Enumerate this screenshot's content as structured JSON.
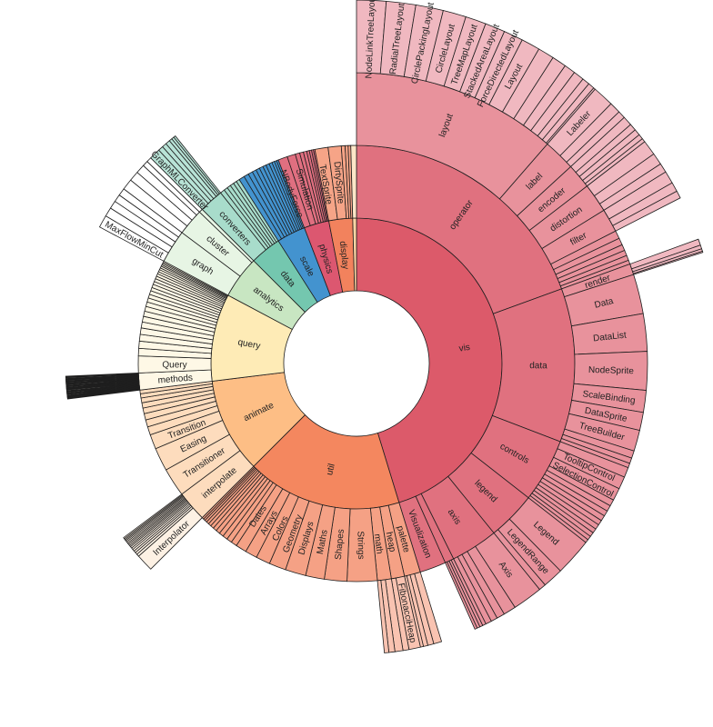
{
  "chart_data": {
    "type": "sunburst",
    "title": "",
    "colors": {
      "vis": [
        "#dc5a6a",
        "#e0717f",
        "#e8929c",
        "#f0b8c0"
      ],
      "util": [
        "#f4875f",
        "#f5a185",
        "#f9c3b1",
        "#fbd8cb"
      ],
      "animate": [
        "#fdbe85",
        "#fddcbd",
        "#fdf1e4",
        "#fff8f0"
      ],
      "query": [
        "#feebb6",
        "#fef8e6",
        "#fffdf5",
        "#ffffff"
      ],
      "analytics": [
        "#c8e6c2",
        "#e7f5e4",
        "#ffffff",
        "#ffffff"
      ],
      "data": [
        "#74c7af",
        "#a8dccb",
        "#b8e3d6",
        "#d5efe6"
      ],
      "scale": [
        "#4393cf",
        "#4393cf",
        "#6aabdb",
        "#9cc8e8"
      ],
      "physics": [
        "#dc5770",
        "#e06f80",
        "#e8939d",
        "#f0b8c0"
      ],
      "display": [
        "#f2825d",
        "#f6a487",
        "#f9c3b1",
        "#fbd8cb"
      ],
      "flex": [
        "#fdd5a5",
        "#fde6c8",
        "#fff1e0",
        "#fff8f0"
      ]
    },
    "tree": {
      "children": [
        {
          "name": "vis",
          "children": [
            {
              "name": "operator",
              "children": [
                {
                  "name": "layout",
                  "children": [
                    {
                      "name": "NodeLinkTreeLayout",
                      "value": 4.7
                    },
                    {
                      "name": "RadialTreeLayout",
                      "value": 4.7
                    },
                    {
                      "name": "CirclePackingLayout",
                      "value": 4.4
                    },
                    {
                      "name": "CircleLayout",
                      "value": 3.7
                    },
                    {
                      "name": "TreeMapLayout",
                      "value": 3.3
                    },
                    {
                      "name": "StackedAreaLayout",
                      "value": 3.2
                    },
                    {
                      "name": "ForceDirectedLayout",
                      "value": 3.1
                    },
                    {
                      "name": "Layout",
                      "value": 3.0
                    },
                    2.6,
                    2.3,
                    1.8,
                    1.7,
                    1.2,
                    1.0,
                    0.3
                  ]
                },
                {
                  "name": "label",
                  "children": [
                    {
                      "name": "Labeler",
                      "value": 3.4
                    },
                    1.8,
                    1.2
                  ]
                },
                {
                  "name": "encoder",
                  "children": [
                    1.5,
                    1.1,
                    1.0,
                    0.8,
                    0.6
                  ]
                },
                {
                  "name": "distortion",
                  "children": [
                    2.4,
                    1.9,
                    1.5
                  ]
                },
                {
                  "name": "filter",
                  "children": [
                    2.0,
                    1.5,
                    1.2
                  ]
                },
                1.6,
                1.4,
                1.2,
                1.1,
                1.0,
                0.8
              ]
            },
            {
              "name": "data",
              "children": [
                {
                  "name": "render",
                  "children": [
                    1.0,
                    0.6,
                    0.4,
                    0.2
                  ]
                },
                {
                  "name": "Data",
                  "value": 7.9
                },
                {
                  "name": "DataList",
                  "value": 7.5
                },
                {
                  "name": "NodeSprite",
                  "value": 7.7
                },
                {
                  "name": "ScaleBinding",
                  "value": 4.4
                },
                {
                  "name": "DataSprite",
                  "value": 3.6
                },
                {
                  "name": "TreeBuilder",
                  "value": 4.2
                },
                1.5,
                1.1,
                0.9
              ]
            },
            {
              "name": "controls",
              "children": [
                2.0,
                {
                  "name": "TooltipControl",
                  "value": 2.5
                },
                {
                  "name": "SelectionControl",
                  "value": 2.5
                },
                1.3,
                1.2,
                1.1,
                1.1,
                1.0,
                1.0,
                0.9,
                0.9,
                0.8,
                0.7
              ]
            },
            {
              "name": "legend",
              "children": [
                {
                  "name": "Legend",
                  "value": 7.5
                },
                {
                  "name": "LegendRange",
                  "value": 4.1
                },
                1.4
              ]
            },
            {
              "name": "axis",
              "children": [
                {
                  "name": "Axis",
                  "value": 6.0
                },
                2.5,
                1.6,
                1.3,
                1.2
              ]
            },
            {
              "children": [
                0.7,
                0.6,
                0.6,
                0.5
              ]
            },
            {
              "name": "Visualization",
              "value": 7.0
            }
          ]
        },
        {
          "name": "util",
          "children": [
            {
              "name": "palette",
              "children": [
                1.6,
                1.2,
                0.9,
                0.6
              ]
            },
            {
              "name": "heap",
              "children": [
                {
                  "name": "FibonacciHeap",
                  "value": 2.3
                },
                1.2
              ]
            },
            {
              "name": "math",
              "children": [
                1.6,
                1.2,
                0.9
              ]
            },
            {
              "name": "Strings",
              "value": 8.0
            },
            {
              "name": "Shapes",
              "value": 6.0
            },
            {
              "name": "Maths",
              "value": 5.0
            },
            {
              "name": "Displays",
              "value": 5.5
            },
            {
              "name": "Geometry",
              "value": 4.5
            },
            {
              "name": "Colors",
              "value": 3.8
            },
            {
              "name": "Arrays",
              "value": 3.2
            },
            {
              "name": "Dates",
              "value": 2.9
            },
            1.6,
            1.4,
            1.3,
            1.2,
            1.1,
            1.0,
            0.9,
            0.8,
            0.7,
            0.6,
            0.5,
            0.5
          ]
        },
        {
          "name": "animate",
          "children": [
            {
              "name": "interpolate",
              "children": [
                {
                  "name": "Interpolator",
                  "value": 3.5
                },
                0.5,
                0.45,
                0.4,
                0.4,
                0.35,
                0.35,
                0.3,
                0.3,
                0.3,
                0.3,
                0.3,
                0.25,
                0.25,
                0.25
              ]
            },
            {
              "name": "Transitioner",
              "value": 7.6
            },
            {
              "name": "Easing",
              "value": 6.2
            },
            {
              "name": "Transition",
              "value": 3.9
            },
            2.2,
            1.9,
            1.7,
            1.5,
            1.4,
            1.3,
            1.1,
            1.0
          ]
        },
        {
          "name": "query",
          "children": [
            {
              "name": "methods",
              "children": [
                0.15,
                0.15,
                0.15,
                0.15,
                0.15,
                0.15,
                0.15,
                0.15,
                0.15,
                0.15,
                0.15,
                0.15,
                0.15,
                0.15,
                0.15,
                0.15,
                0.15,
                0.15,
                0.15,
                0.15,
                0.15,
                0.15,
                0.15,
                0.15,
                0.15,
                0.15,
                0.15,
                0.15,
                0.15,
                0.15
              ]
            },
            {
              "name": "Query",
              "value": 4.5
            },
            2.0,
            1.9,
            1.8,
            1.7,
            1.6,
            1.5,
            1.4,
            1.3,
            1.2,
            1.1,
            1.0,
            1.0,
            0.9,
            0.9,
            0.8,
            0.8,
            0.7,
            0.7,
            0.6,
            0.6,
            0.5,
            0.5,
            0.4,
            0.4,
            0.35,
            0.35
          ]
        },
        {
          "name": "analytics",
          "children": [
            {
              "name": "graph",
              "children": [
                {
                  "name": "MaxFlowMinCut",
                  "value": 2.5
                },
                1.8,
                1.6,
                1.5,
                1.5
              ]
            },
            {
              "name": "cluster",
              "children": [
                2.2,
                2.0,
                1.8,
                1.1
              ]
            },
            {
              "children": [
                1.0
              ]
            }
          ]
        },
        {
          "name": "data",
          "children": [
            {
              "name": "converters",
              "children": [
                {
                  "name": "GraphMLConverter",
                  "value": 2.2
                },
                1.0,
                0.9,
                0.9,
                0.6,
                0.5,
                0.4
              ]
            },
            1.2,
            1.0,
            1.0,
            1.0,
            0.9,
            0.9
          ]
        },
        {
          "name": "scale",
          "children": [
            1.5,
            1.3,
            1.2,
            1.1,
            1.0,
            1.0,
            0.9,
            0.9,
            0.8,
            0.7,
            0.6,
            0.5
          ]
        },
        {
          "name": "physics",
          "children": [
            {
              "name": "NBodyForce",
              "value": 2.5
            },
            {
              "name": "Simulation",
              "value": 2.2
            },
            1.2,
            1.0,
            0.9,
            0.7,
            0.6,
            0.5,
            0.4
          ]
        },
        {
          "name": "display",
          "children": [
            {
              "name": "TextSprite",
              "value": 3.5
            },
            {
              "name": "DirtySprite",
              "value": 3.5
            },
            1.0,
            0.8,
            0.7
          ]
        },
        {
          "children": [
            1.5
          ]
        }
      ]
    }
  }
}
